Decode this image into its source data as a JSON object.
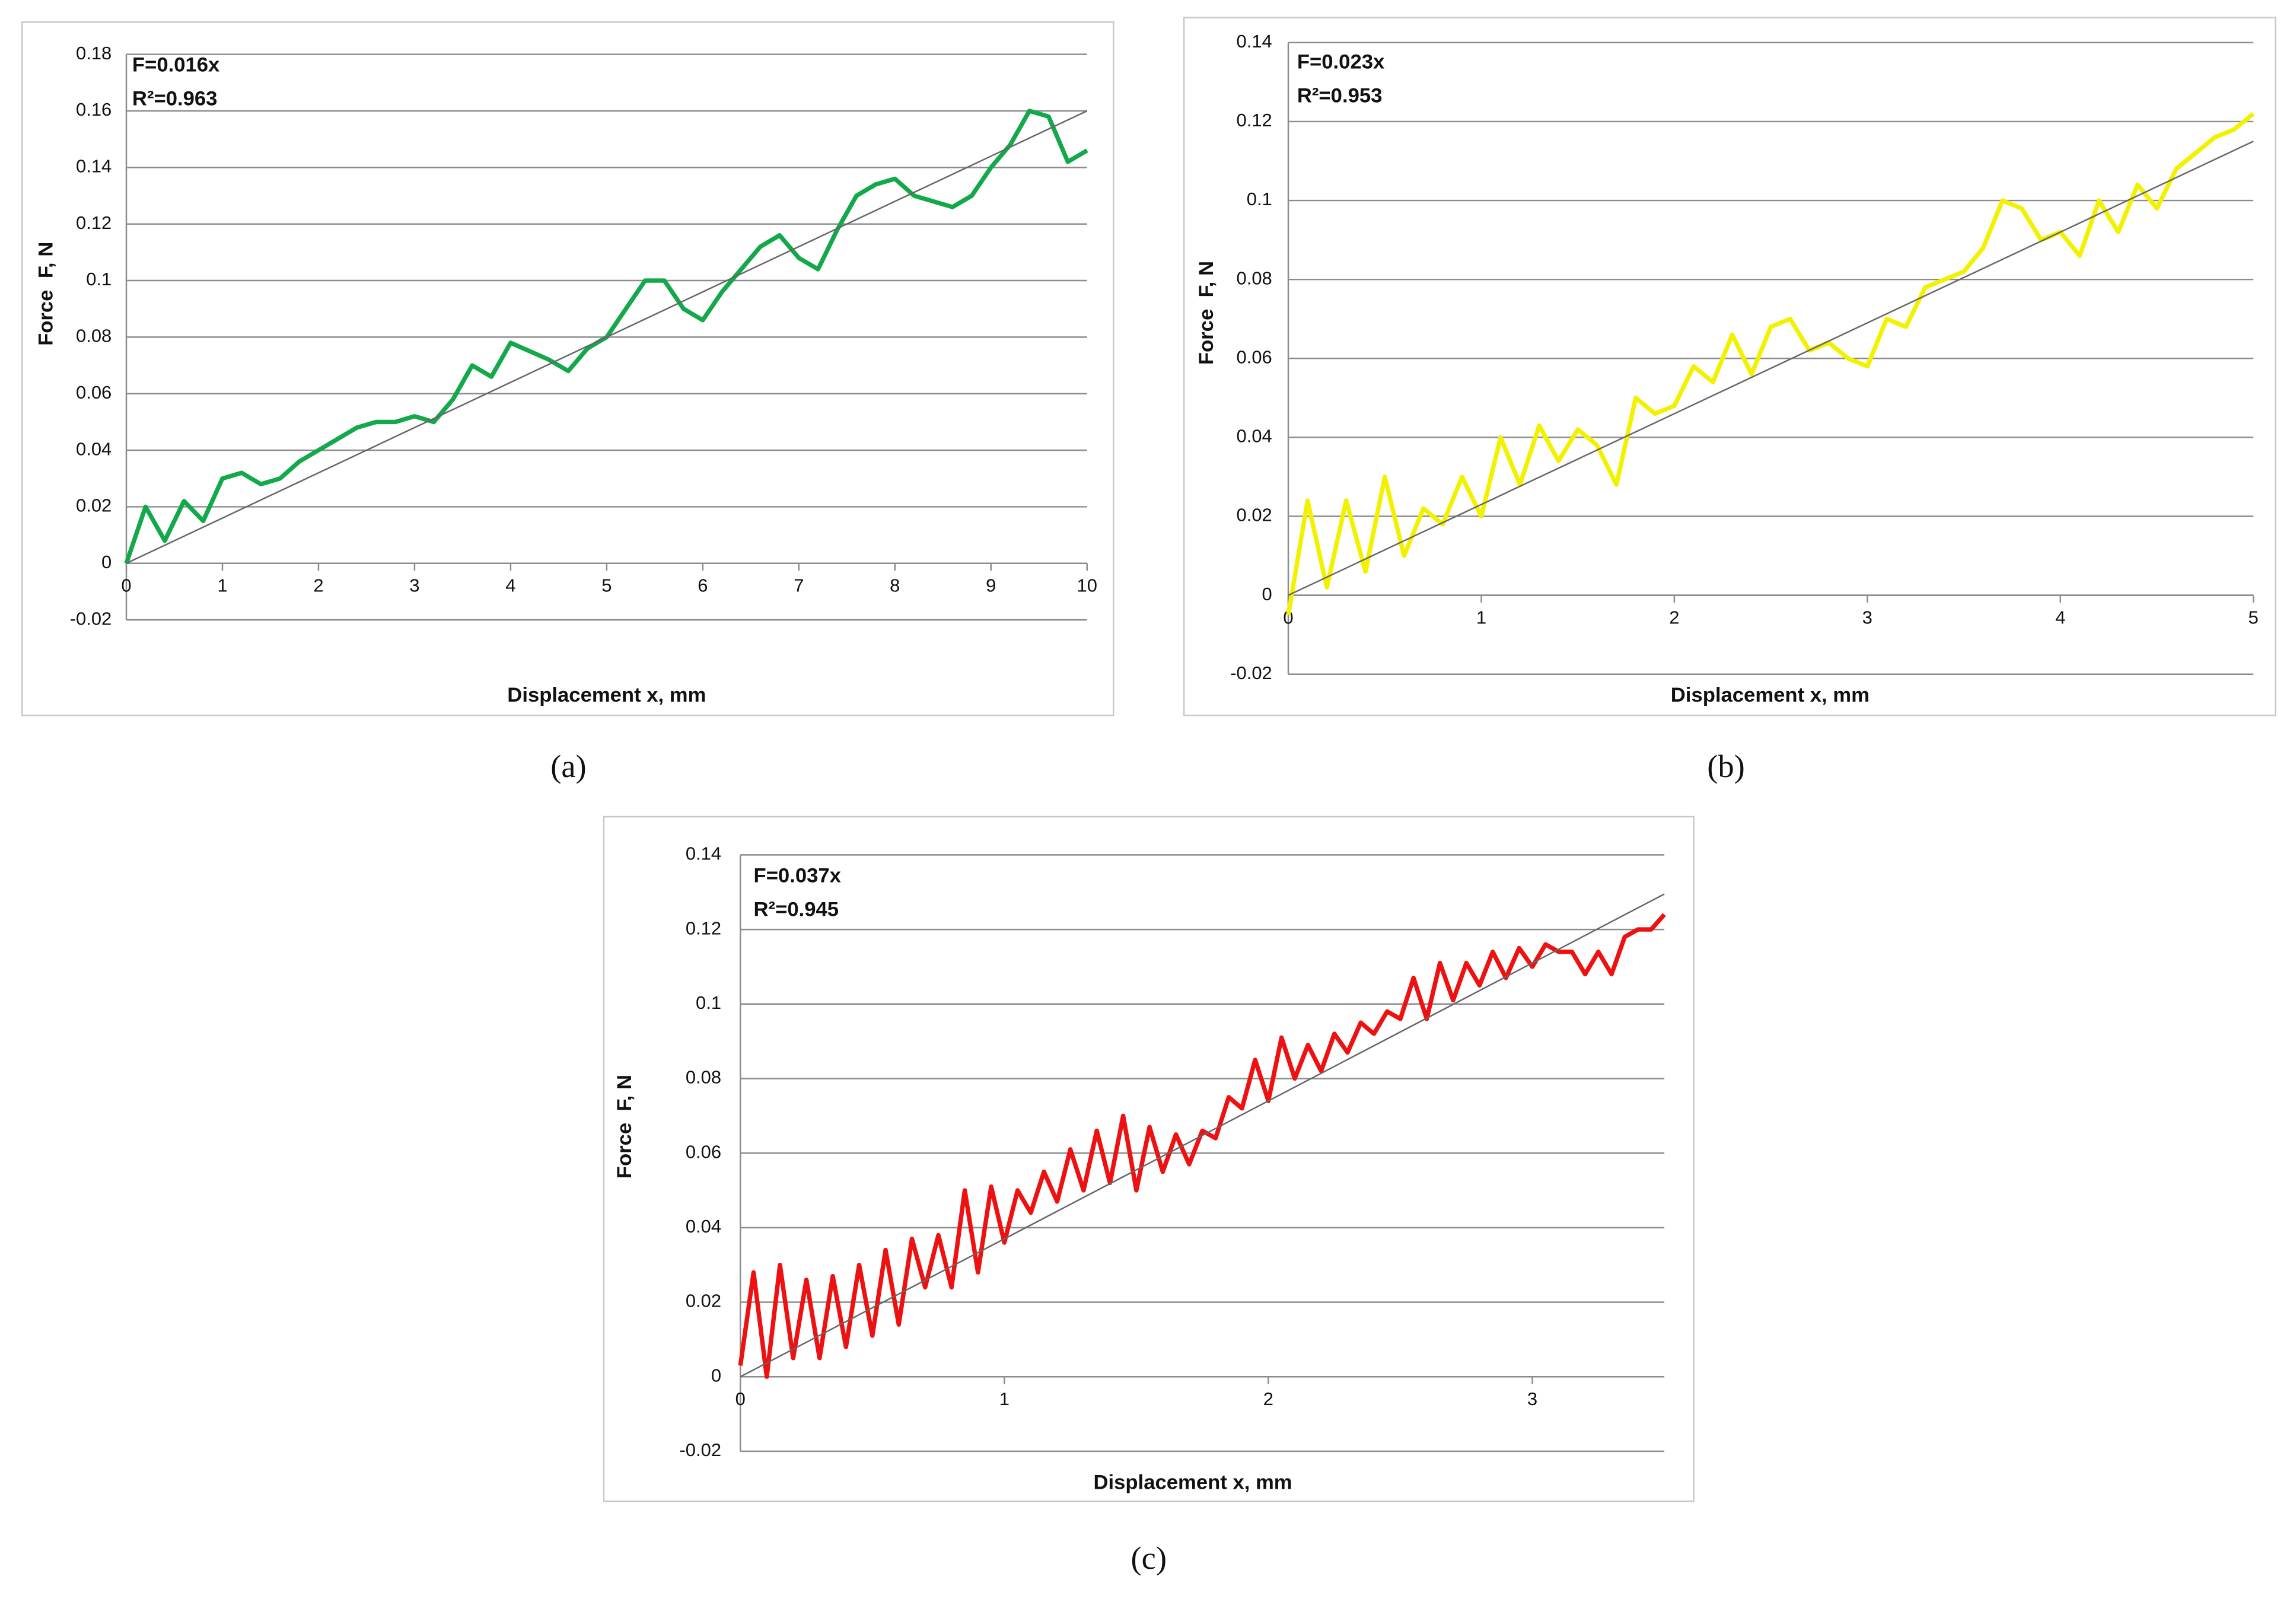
{
  "chart_data": [
    {
      "type": "line",
      "caption": "(a)",
      "xlabel": "Displacement x, mm",
      "ylabel": "Force  F, N",
      "annotations": [
        "F=0.016x",
        "R²=0.963"
      ],
      "x": [
        0,
        0.2,
        0.4,
        0.6,
        0.8,
        1,
        1.2,
        1.4,
        1.6,
        1.8,
        2,
        2.2,
        2.4,
        2.6,
        2.8,
        3,
        3.2,
        3.4,
        3.6,
        3.8,
        4,
        4.2,
        4.4,
        4.6,
        4.8,
        5,
        5.2,
        5.4,
        5.6,
        5.8,
        6,
        6.2,
        6.4,
        6.6,
        6.8,
        7,
        7.2,
        7.4,
        7.6,
        7.8,
        8,
        8.2,
        8.4,
        8.6,
        8.8,
        9,
        9.2,
        9.4,
        9.6,
        9.8,
        10
      ],
      "series": [
        {
          "color": "#13a84a",
          "values": [
            0,
            0.02,
            0.008,
            0.022,
            0.015,
            0.03,
            0.032,
            0.028,
            0.03,
            0.036,
            0.04,
            0.044,
            0.048,
            0.05,
            0.05,
            0.052,
            0.05,
            0.058,
            0.07,
            0.066,
            0.078,
            0.075,
            0.072,
            0.068,
            0.076,
            0.08,
            0.09,
            0.1,
            0.1,
            0.09,
            0.086,
            0.096,
            0.104,
            0.112,
            0.116,
            0.108,
            0.104,
            0.118,
            0.13,
            0.134,
            0.136,
            0.13,
            0.128,
            0.126,
            0.13,
            0.14,
            0.148,
            0.16,
            0.158,
            0.142,
            0.146
          ]
        }
      ],
      "trendline": {
        "x": [
          0,
          10
        ],
        "values": [
          0,
          0.16
        ],
        "color": "#666666"
      },
      "xlim": [
        0,
        10
      ],
      "ylim": [
        -0.02,
        0.18
      ],
      "xticks": [
        0,
        1,
        2,
        3,
        4,
        5,
        6,
        7,
        8,
        9,
        10
      ],
      "yticks": [
        -0.02,
        0,
        0.02,
        0.04,
        0.06,
        0.08,
        0.1,
        0.12,
        0.14,
        0.16,
        0.18
      ],
      "grid": true
    },
    {
      "type": "line",
      "caption": "(b)",
      "xlabel": "Displacement x, mm",
      "ylabel": "Force  F, N",
      "annotations": [
        "F=0.023x",
        "R²=0.953"
      ],
      "x": [
        0,
        0.1,
        0.2,
        0.3,
        0.4,
        0.5,
        0.6,
        0.7,
        0.8,
        0.9,
        1,
        1.1,
        1.2,
        1.3,
        1.4,
        1.5,
        1.6,
        1.7,
        1.8,
        1.9,
        2,
        2.1,
        2.2,
        2.3,
        2.4,
        2.5,
        2.6,
        2.7,
        2.8,
        2.9,
        3,
        3.1,
        3.2,
        3.3,
        3.4,
        3.5,
        3.6,
        3.7,
        3.8,
        3.9,
        4,
        4.1,
        4.2,
        4.3,
        4.4,
        4.5,
        4.6,
        4.7,
        4.8,
        4.9,
        5
      ],
      "series": [
        {
          "color": "#f2f200",
          "values": [
            -0.005,
            0.024,
            0.002,
            0.024,
            0.006,
            0.03,
            0.01,
            0.022,
            0.018,
            0.03,
            0.02,
            0.04,
            0.028,
            0.043,
            0.034,
            0.042,
            0.038,
            0.028,
            0.05,
            0.046,
            0.048,
            0.058,
            0.054,
            0.066,
            0.056,
            0.068,
            0.07,
            0.062,
            0.064,
            0.06,
            0.058,
            0.07,
            0.068,
            0.078,
            0.08,
            0.082,
            0.088,
            0.1,
            0.098,
            0.09,
            0.092,
            0.086,
            0.1,
            0.092,
            0.104,
            0.098,
            0.108,
            0.112,
            0.116,
            0.118,
            0.122
          ]
        }
      ],
      "trendline": {
        "x": [
          0,
          5
        ],
        "values": [
          0,
          0.115
        ],
        "color": "#666666"
      },
      "xlim": [
        0,
        5
      ],
      "ylim": [
        -0.02,
        0.14
      ],
      "xticks": [
        0,
        1,
        2,
        3,
        4,
        5
      ],
      "yticks": [
        -0.02,
        0,
        0.02,
        0.04,
        0.06,
        0.08,
        0.1,
        0.12,
        0.14
      ],
      "grid": true
    },
    {
      "type": "line",
      "caption": "(c)",
      "xlabel": "Displacement x, mm",
      "ylabel": "Force  F, N",
      "annotations": [
        "F=0.037x",
        "R²=0.945"
      ],
      "x": [
        0,
        0.05,
        0.1,
        0.15,
        0.2,
        0.25,
        0.3,
        0.35,
        0.4,
        0.45,
        0.5,
        0.55,
        0.6,
        0.65,
        0.7,
        0.75,
        0.8,
        0.85,
        0.9,
        0.95,
        1,
        1.05,
        1.1,
        1.15,
        1.2,
        1.25,
        1.3,
        1.35,
        1.4,
        1.45,
        1.5,
        1.55,
        1.6,
        1.65,
        1.7,
        1.75,
        1.8,
        1.85,
        1.9,
        1.95,
        2,
        2.05,
        2.1,
        2.15,
        2.2,
        2.25,
        2.3,
        2.35,
        2.4,
        2.45,
        2.5,
        2.55,
        2.6,
        2.65,
        2.7,
        2.75,
        2.8,
        2.85,
        2.9,
        2.95,
        3,
        3.05,
        3.1,
        3.15,
        3.2,
        3.25,
        3.3,
        3.35,
        3.4,
        3.45,
        3.5
      ],
      "series": [
        {
          "color": "#ee1111",
          "values": [
            0.003,
            0.028,
            0,
            0.03,
            0.005,
            0.026,
            0.005,
            0.027,
            0.008,
            0.03,
            0.011,
            0.034,
            0.014,
            0.037,
            0.024,
            0.038,
            0.024,
            0.05,
            0.028,
            0.051,
            0.036,
            0.05,
            0.044,
            0.055,
            0.047,
            0.061,
            0.05,
            0.066,
            0.052,
            0.07,
            0.05,
            0.067,
            0.055,
            0.065,
            0.057,
            0.066,
            0.064,
            0.075,
            0.072,
            0.085,
            0.074,
            0.091,
            0.08,
            0.089,
            0.082,
            0.092,
            0.087,
            0.095,
            0.092,
            0.098,
            0.096,
            0.107,
            0.096,
            0.111,
            0.101,
            0.111,
            0.105,
            0.114,
            0.107,
            0.115,
            0.11,
            0.116,
            0.114,
            0.114,
            0.108,
            0.114,
            0.108,
            0.118,
            0.12,
            0.12,
            0.124
          ]
        }
      ],
      "trendline": {
        "x": [
          0,
          3.5
        ],
        "values": [
          0,
          0.1295
        ],
        "color": "#666666"
      },
      "xlim": [
        0,
        3.5
      ],
      "ylim": [
        -0.02,
        0.14
      ],
      "xticks": [
        0,
        1,
        2,
        3
      ],
      "yticks": [
        -0.02,
        0,
        0.02,
        0.04,
        0.06,
        0.08,
        0.1,
        0.12,
        0.14
      ],
      "grid": true
    }
  ]
}
